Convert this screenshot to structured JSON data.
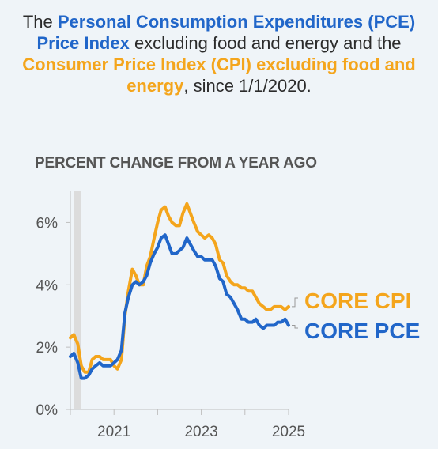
{
  "title": {
    "p1": "The ",
    "pce_name": "Personal Consumption Expenditures (PCE) Price Index",
    "p2": " excluding food and energy and the ",
    "cpi_name": "Consumer Price Index (CPI) excluding food and energy",
    "p3": ", since 1/1/2020."
  },
  "colors": {
    "cpi": "#f4a51c",
    "pce": "#2166c9",
    "recession": "#dcdcdc",
    "axis": "#bfbfbf"
  },
  "chart_data": {
    "type": "line",
    "subtitle": "PERCENT CHANGE FROM A YEAR AGO",
    "ylim": [
      0,
      7
    ],
    "y_ticks": [
      0,
      2,
      4,
      6
    ],
    "y_tick_labels": [
      "0%",
      "2%",
      "4%",
      "6%"
    ],
    "xlim": [
      2020,
      2025
    ],
    "x_ticks": [
      2021,
      2023,
      2025
    ],
    "x_tick_labels": [
      "2021",
      "2023",
      "2025"
    ],
    "recession_band": [
      2020.09,
      2020.25
    ],
    "grid": false,
    "series": [
      {
        "name": "CORE CPI",
        "color": "#f4a51c",
        "values": [
          [
            2020.0,
            2.3
          ],
          [
            2020.08,
            2.4
          ],
          [
            2020.17,
            2.1
          ],
          [
            2020.25,
            1.4
          ],
          [
            2020.33,
            1.2
          ],
          [
            2020.42,
            1.2
          ],
          [
            2020.5,
            1.6
          ],
          [
            2020.58,
            1.7
          ],
          [
            2020.67,
            1.7
          ],
          [
            2020.75,
            1.6
          ],
          [
            2020.83,
            1.6
          ],
          [
            2020.92,
            1.6
          ],
          [
            2021.0,
            1.4
          ],
          [
            2021.08,
            1.3
          ],
          [
            2021.17,
            1.6
          ],
          [
            2021.25,
            3.0
          ],
          [
            2021.33,
            3.8
          ],
          [
            2021.42,
            4.5
          ],
          [
            2021.5,
            4.3
          ],
          [
            2021.58,
            4.0
          ],
          [
            2021.67,
            4.0
          ],
          [
            2021.75,
            4.6
          ],
          [
            2021.83,
            4.9
          ],
          [
            2021.92,
            5.5
          ],
          [
            2022.0,
            6.0
          ],
          [
            2022.08,
            6.4
          ],
          [
            2022.17,
            6.5
          ],
          [
            2022.25,
            6.2
          ],
          [
            2022.33,
            6.0
          ],
          [
            2022.42,
            5.9
          ],
          [
            2022.5,
            5.9
          ],
          [
            2022.58,
            6.3
          ],
          [
            2022.67,
            6.6
          ],
          [
            2022.75,
            6.3
          ],
          [
            2022.83,
            6.0
          ],
          [
            2022.92,
            5.7
          ],
          [
            2023.0,
            5.6
          ],
          [
            2023.08,
            5.5
          ],
          [
            2023.17,
            5.6
          ],
          [
            2023.25,
            5.5
          ],
          [
            2023.33,
            5.3
          ],
          [
            2023.42,
            4.8
          ],
          [
            2023.5,
            4.7
          ],
          [
            2023.58,
            4.3
          ],
          [
            2023.67,
            4.1
          ],
          [
            2023.75,
            4.0
          ],
          [
            2023.83,
            4.0
          ],
          [
            2023.92,
            3.9
          ],
          [
            2024.0,
            3.9
          ],
          [
            2024.08,
            3.8
          ],
          [
            2024.17,
            3.8
          ],
          [
            2024.25,
            3.6
          ],
          [
            2024.33,
            3.4
          ],
          [
            2024.42,
            3.3
          ],
          [
            2024.5,
            3.2
          ],
          [
            2024.58,
            3.2
          ],
          [
            2024.67,
            3.3
          ],
          [
            2024.75,
            3.3
          ],
          [
            2024.83,
            3.3
          ],
          [
            2024.92,
            3.2
          ],
          [
            2025.0,
            3.3
          ]
        ]
      },
      {
        "name": "CORE PCE",
        "color": "#2166c9",
        "values": [
          [
            2020.0,
            1.7
          ],
          [
            2020.08,
            1.8
          ],
          [
            2020.17,
            1.5
          ],
          [
            2020.25,
            1.0
          ],
          [
            2020.33,
            1.0
          ],
          [
            2020.42,
            1.1
          ],
          [
            2020.5,
            1.3
          ],
          [
            2020.58,
            1.4
          ],
          [
            2020.67,
            1.5
          ],
          [
            2020.75,
            1.4
          ],
          [
            2020.83,
            1.4
          ],
          [
            2020.92,
            1.4
          ],
          [
            2021.0,
            1.5
          ],
          [
            2021.08,
            1.6
          ],
          [
            2021.17,
            1.9
          ],
          [
            2021.25,
            3.1
          ],
          [
            2021.33,
            3.6
          ],
          [
            2021.42,
            4.0
          ],
          [
            2021.5,
            4.1
          ],
          [
            2021.58,
            4.0
          ],
          [
            2021.67,
            4.1
          ],
          [
            2021.75,
            4.3
          ],
          [
            2021.83,
            4.7
          ],
          [
            2021.92,
            5.0
          ],
          [
            2022.0,
            5.2
          ],
          [
            2022.08,
            5.5
          ],
          [
            2022.17,
            5.6
          ],
          [
            2022.25,
            5.3
          ],
          [
            2022.33,
            5.0
          ],
          [
            2022.42,
            5.0
          ],
          [
            2022.5,
            5.1
          ],
          [
            2022.58,
            5.2
          ],
          [
            2022.67,
            5.5
          ],
          [
            2022.75,
            5.3
          ],
          [
            2022.83,
            5.1
          ],
          [
            2022.92,
            4.9
          ],
          [
            2023.0,
            4.9
          ],
          [
            2023.08,
            4.8
          ],
          [
            2023.17,
            4.8
          ],
          [
            2023.25,
            4.8
          ],
          [
            2023.33,
            4.6
          ],
          [
            2023.42,
            4.2
          ],
          [
            2023.5,
            4.1
          ],
          [
            2023.58,
            3.7
          ],
          [
            2023.67,
            3.6
          ],
          [
            2023.75,
            3.4
          ],
          [
            2023.83,
            3.2
          ],
          [
            2023.92,
            2.9
          ],
          [
            2024.0,
            2.9
          ],
          [
            2024.08,
            2.8
          ],
          [
            2024.17,
            2.8
          ],
          [
            2024.25,
            2.9
          ],
          [
            2024.33,
            2.7
          ],
          [
            2024.42,
            2.6
          ],
          [
            2024.5,
            2.7
          ],
          [
            2024.58,
            2.7
          ],
          [
            2024.67,
            2.7
          ],
          [
            2024.75,
            2.8
          ],
          [
            2024.83,
            2.8
          ],
          [
            2024.92,
            2.9
          ],
          [
            2025.0,
            2.7
          ]
        ]
      }
    ],
    "labels": [
      "CORE CPI",
      "CORE PCE"
    ]
  }
}
